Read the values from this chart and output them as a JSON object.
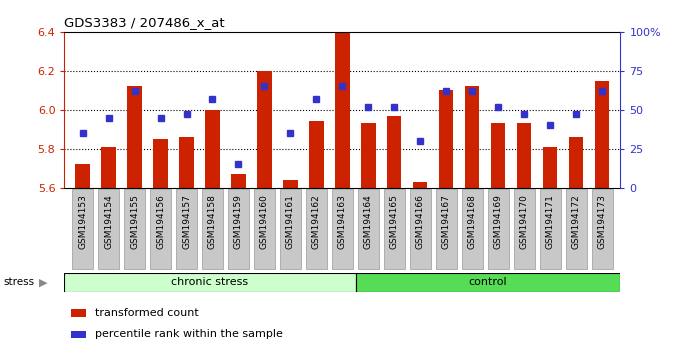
{
  "title": "GDS3383 / 207486_x_at",
  "samples": [
    "GSM194153",
    "GSM194154",
    "GSM194155",
    "GSM194156",
    "GSM194157",
    "GSM194158",
    "GSM194159",
    "GSM194160",
    "GSM194161",
    "GSM194162",
    "GSM194163",
    "GSM194164",
    "GSM194165",
    "GSM194166",
    "GSM194167",
    "GSM194168",
    "GSM194169",
    "GSM194170",
    "GSM194171",
    "GSM194172",
    "GSM194173"
  ],
  "bar_values": [
    5.72,
    5.81,
    6.12,
    5.85,
    5.86,
    6.0,
    5.67,
    6.2,
    5.64,
    5.94,
    6.4,
    5.93,
    5.97,
    5.63,
    6.1,
    6.12,
    5.93,
    5.93,
    5.81,
    5.86,
    6.15
  ],
  "dot_percentiles": [
    35,
    45,
    62,
    45,
    47,
    57,
    15,
    65,
    35,
    57,
    65,
    52,
    52,
    30,
    62,
    62,
    52,
    47,
    40,
    47,
    62
  ],
  "group_chronic_count": 11,
  "ylim_left": [
    5.6,
    6.4
  ],
  "ylim_right": [
    0,
    100
  ],
  "yticks_left": [
    5.6,
    5.8,
    6.0,
    6.2,
    6.4
  ],
  "yticks_right": [
    0,
    25,
    50,
    75,
    100
  ],
  "bar_color": "#CC2200",
  "dot_color": "#3333CC",
  "chronic_stress_color": "#CCFFCC",
  "control_color": "#55DD55",
  "xtick_bg_color": "#C8C8C8",
  "legend_items": [
    "transformed count",
    "percentile rank within the sample"
  ]
}
